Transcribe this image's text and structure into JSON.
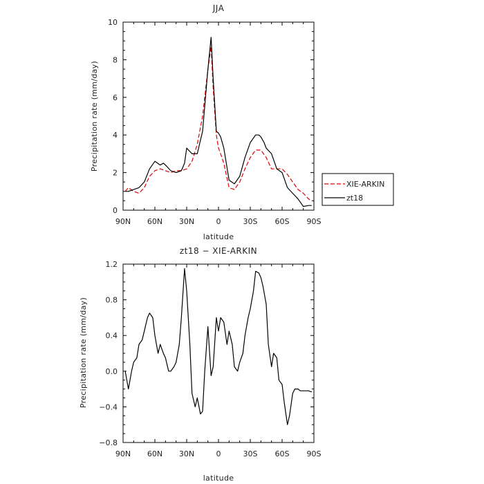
{
  "chart_data": [
    {
      "type": "line",
      "title": "JJA",
      "xlabel": "latitude",
      "ylabel": "Precipitation rate (mm/day)",
      "xlim": [
        90,
        -90
      ],
      "ylim": [
        0,
        10
      ],
      "x_ticks": [
        90,
        60,
        30,
        0,
        -30,
        -60,
        -90
      ],
      "x_tick_labels": [
        "90N",
        "60N",
        "30N",
        "0",
        "30S",
        "60S",
        "90S"
      ],
      "y_ticks": [
        0,
        2,
        4,
        6,
        8,
        10
      ],
      "y_tick_labels": [
        "0",
        "2",
        "4",
        "6",
        "8",
        "10"
      ],
      "legend_position": "outside-right",
      "series": [
        {
          "name": "XIE-ARKIN",
          "color": "#dd0000",
          "dash": "dashed",
          "x": [
            88,
            85,
            80,
            75,
            70,
            65,
            60,
            55,
            50,
            45,
            40,
            35,
            30,
            25,
            20,
            15,
            10,
            7,
            5,
            2,
            0,
            -2,
            -5,
            -10,
            -15,
            -20,
            -25,
            -30,
            -35,
            -40,
            -45,
            -50,
            -55,
            -60,
            -65,
            -70,
            -75,
            -80,
            -85,
            -88
          ],
          "y": [
            1.0,
            1.2,
            1.0,
            0.9,
            1.2,
            1.8,
            2.1,
            2.2,
            2.1,
            2.0,
            2.1,
            2.1,
            2.2,
            2.6,
            3.5,
            5.0,
            7.5,
            8.7,
            6.5,
            4.0,
            3.3,
            3.0,
            2.5,
            1.2,
            1.1,
            1.5,
            2.2,
            2.8,
            3.2,
            3.2,
            2.8,
            2.2,
            2.2,
            2.2,
            1.9,
            1.5,
            1.1,
            0.9,
            0.6,
            0.5
          ]
        },
        {
          "name": "zt18",
          "color": "#000000",
          "dash": "solid",
          "x": [
            88,
            85,
            80,
            75,
            70,
            65,
            60,
            55,
            52,
            50,
            45,
            40,
            35,
            32,
            30,
            25,
            20,
            15,
            10,
            7,
            5,
            2,
            0,
            -2,
            -5,
            -10,
            -15,
            -20,
            -25,
            -30,
            -35,
            -38,
            -40,
            -43,
            -45,
            -50,
            -55,
            -60,
            -65,
            -70,
            -75,
            -80,
            -85,
            -88
          ],
          "y": [
            1.0,
            1.0,
            1.1,
            1.2,
            1.5,
            2.2,
            2.6,
            2.4,
            2.5,
            2.4,
            2.1,
            2.0,
            2.1,
            2.5,
            3.3,
            3.0,
            3.0,
            4.2,
            7.5,
            9.2,
            7.0,
            4.2,
            4.1,
            3.9,
            3.3,
            1.6,
            1.4,
            1.8,
            2.8,
            3.6,
            4.0,
            4.0,
            3.9,
            3.6,
            3.3,
            3.0,
            2.2,
            2.0,
            1.2,
            0.9,
            0.6,
            0.2,
            0.25,
            0.25
          ]
        }
      ]
    },
    {
      "type": "line",
      "title": "zt18 − XIE-ARKIN",
      "xlabel": "latitude",
      "ylabel": "Precipitation rate (mm/day)",
      "xlim": [
        90,
        -90
      ],
      "ylim": [
        -0.8,
        1.2
      ],
      "x_ticks": [
        90,
        60,
        30,
        0,
        -30,
        -60,
        -90
      ],
      "x_tick_labels": [
        "90N",
        "60N",
        "30N",
        "0",
        "30S",
        "60S",
        "90S"
      ],
      "y_ticks": [
        -0.8,
        -0.4,
        0.0,
        0.4,
        0.8,
        1.2
      ],
      "y_tick_labels": [
        "−0.8",
        "−0.4",
        "0.0",
        "0.4",
        "0.8",
        "1.2"
      ],
      "series": [
        {
          "name": "",
          "color": "#000000",
          "dash": "solid",
          "x": [
            88,
            85,
            82,
            80,
            77,
            75,
            72,
            70,
            67,
            65,
            62,
            60,
            57,
            55,
            52,
            50,
            47,
            45,
            42,
            40,
            37,
            35,
            32,
            30,
            27,
            25,
            22,
            20,
            17,
            15,
            13,
            10,
            7,
            5,
            2,
            0,
            -2,
            -5,
            -8,
            -10,
            -13,
            -15,
            -18,
            -20,
            -23,
            -25,
            -28,
            -30,
            -33,
            -35,
            -38,
            -40,
            -42,
            -45,
            -47,
            -50,
            -52,
            -55,
            -57,
            -60,
            -62,
            -65,
            -67,
            -70,
            -72,
            -75,
            -77,
            -80,
            -82,
            -85,
            -87,
            -88
          ],
          "y": [
            0.0,
            -0.2,
            0.0,
            0.1,
            0.15,
            0.3,
            0.35,
            0.45,
            0.6,
            0.65,
            0.6,
            0.4,
            0.2,
            0.3,
            0.2,
            0.15,
            0.0,
            0.0,
            0.05,
            0.1,
            0.3,
            0.6,
            1.15,
            0.9,
            0.3,
            -0.25,
            -0.4,
            -0.3,
            -0.48,
            -0.45,
            0.0,
            0.5,
            -0.05,
            0.05,
            0.6,
            0.45,
            0.6,
            0.55,
            0.3,
            0.45,
            0.3,
            0.05,
            0.0,
            0.1,
            0.2,
            0.4,
            0.6,
            0.7,
            0.9,
            1.12,
            1.1,
            1.05,
            0.95,
            0.75,
            0.3,
            0.05,
            0.2,
            0.15,
            -0.1,
            -0.15,
            -0.35,
            -0.6,
            -0.5,
            -0.25,
            -0.2,
            -0.2,
            -0.22,
            -0.22,
            -0.22,
            -0.22,
            -0.23,
            -0.23
          ]
        }
      ]
    }
  ]
}
